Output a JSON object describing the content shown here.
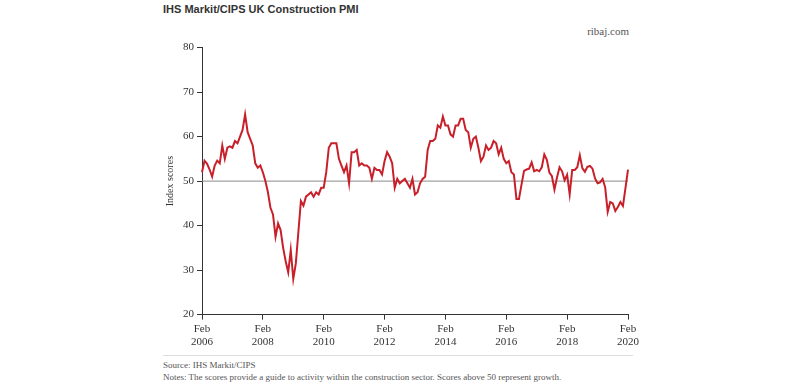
{
  "chart_data": {
    "type": "line",
    "title": "IHS Markit/CIPS UK Construction PMI",
    "credit": "ribaj.com",
    "y_label": "Index scores",
    "source": "Source: IHS Markit/CIPS",
    "notes": "Notes: The scores provide a guide to activity within the construction sector. Scores above 50 represent growth.",
    "color": "#c8202a",
    "grid": false,
    "reference_line": 50,
    "ylim": [
      20,
      80
    ],
    "yticks": [
      20,
      30,
      40,
      50,
      60,
      70,
      80
    ],
    "categories": [
      "Feb 2006",
      null,
      null,
      null,
      null,
      null,
      null,
      null,
      null,
      null,
      null,
      null,
      null,
      null,
      null,
      null,
      null,
      null,
      null,
      null,
      null,
      null,
      null,
      null,
      "Feb 2008",
      null,
      null,
      null,
      null,
      null,
      null,
      null,
      null,
      null,
      null,
      null,
      null,
      null,
      null,
      null,
      null,
      null,
      null,
      null,
      null,
      null,
      null,
      null,
      "Feb 2010",
      null,
      null,
      null,
      null,
      null,
      null,
      null,
      null,
      null,
      null,
      null,
      null,
      null,
      null,
      null,
      null,
      null,
      null,
      null,
      null,
      null,
      null,
      null,
      "Feb 2012",
      null,
      null,
      null,
      null,
      null,
      null,
      null,
      null,
      null,
      null,
      null,
      null,
      null,
      null,
      null,
      null,
      null,
      null,
      null,
      null,
      null,
      null,
      null,
      "Feb 2014",
      null,
      null,
      null,
      null,
      null,
      null,
      null,
      null,
      null,
      null,
      null,
      null,
      null,
      null,
      null,
      null,
      null,
      null,
      null,
      null,
      null,
      null,
      null,
      "Feb 2016",
      null,
      null,
      null,
      null,
      null,
      null,
      null,
      null,
      null,
      null,
      null,
      null,
      null,
      null,
      null,
      null,
      null,
      null,
      null,
      null,
      null,
      null,
      null,
      "Feb 2018",
      null,
      null,
      null,
      null,
      null,
      null,
      null,
      null,
      null,
      null,
      null,
      null,
      null,
      null,
      null,
      null,
      null,
      null,
      null,
      null,
      null,
      null,
      null,
      "Feb 2020"
    ],
    "values": [
      52.0,
      54.6,
      53.9,
      52.6,
      51.0,
      53.5,
      54.6,
      54.0,
      58.0,
      55.0,
      57.5,
      57.8,
      57.5,
      59.0,
      58.5,
      60.0,
      61.5,
      65.0,
      61.0,
      59.5,
      58.0,
      54.0,
      53.0,
      53.5,
      52.0,
      50.0,
      47.5,
      44.0,
      42.5,
      37.5,
      40.5,
      39.0,
      35.0,
      32.0,
      29.5,
      34.5,
      28.0,
      31.5,
      38.5,
      45.5,
      44.5,
      46.5,
      47.0,
      47.5,
      46.5,
      47.5,
      47.0,
      48.5,
      48.5,
      52.0,
      57.5,
      58.5,
      58.5,
      58.5,
      55.0,
      53.5,
      52.0,
      53.5,
      49.5,
      56.5,
      56.5,
      57.0,
      53.5,
      54.0,
      53.5,
      53.5,
      53.0,
      50.5,
      53.0,
      52.5,
      52.5,
      51.5,
      54.5,
      56.5,
      55.5,
      54.0,
      48.5,
      50.5,
      49.5,
      50.0,
      50.5,
      49.5,
      48.5,
      50.5,
      47.0,
      47.5,
      49.5,
      50.5,
      51.0,
      57.0,
      59.0,
      59.0,
      59.5,
      62.5,
      62.0,
      64.5,
      62.5,
      62.5,
      60.5,
      60.0,
      62.5,
      62.5,
      64.0,
      64.0,
      61.5,
      61.0,
      57.5,
      59.5,
      60.0,
      57.5,
      54.5,
      55.5,
      58.0,
      57.0,
      57.5,
      59.0,
      58.5,
      56.0,
      57.5,
      55.0,
      54.0,
      54.5,
      52.0,
      51.5,
      46.0,
      46.0,
      49.2,
      52.3,
      52.6,
      52.8,
      54.2,
      52.2,
      52.5,
      52.2,
      53.1,
      56.0,
      54.8,
      51.9,
      51.1,
      48.1,
      50.8,
      53.1,
      52.2,
      50.2,
      51.4,
      47.0,
      52.5,
      52.5,
      53.1,
      55.8,
      52.9,
      52.1,
      53.2,
      53.4,
      52.8,
      50.6,
      49.5,
      49.7,
      50.5,
      48.6,
      43.1,
      45.3,
      45.0,
      43.3,
      44.2,
      45.3,
      44.4,
      48.4,
      52.6
    ]
  }
}
